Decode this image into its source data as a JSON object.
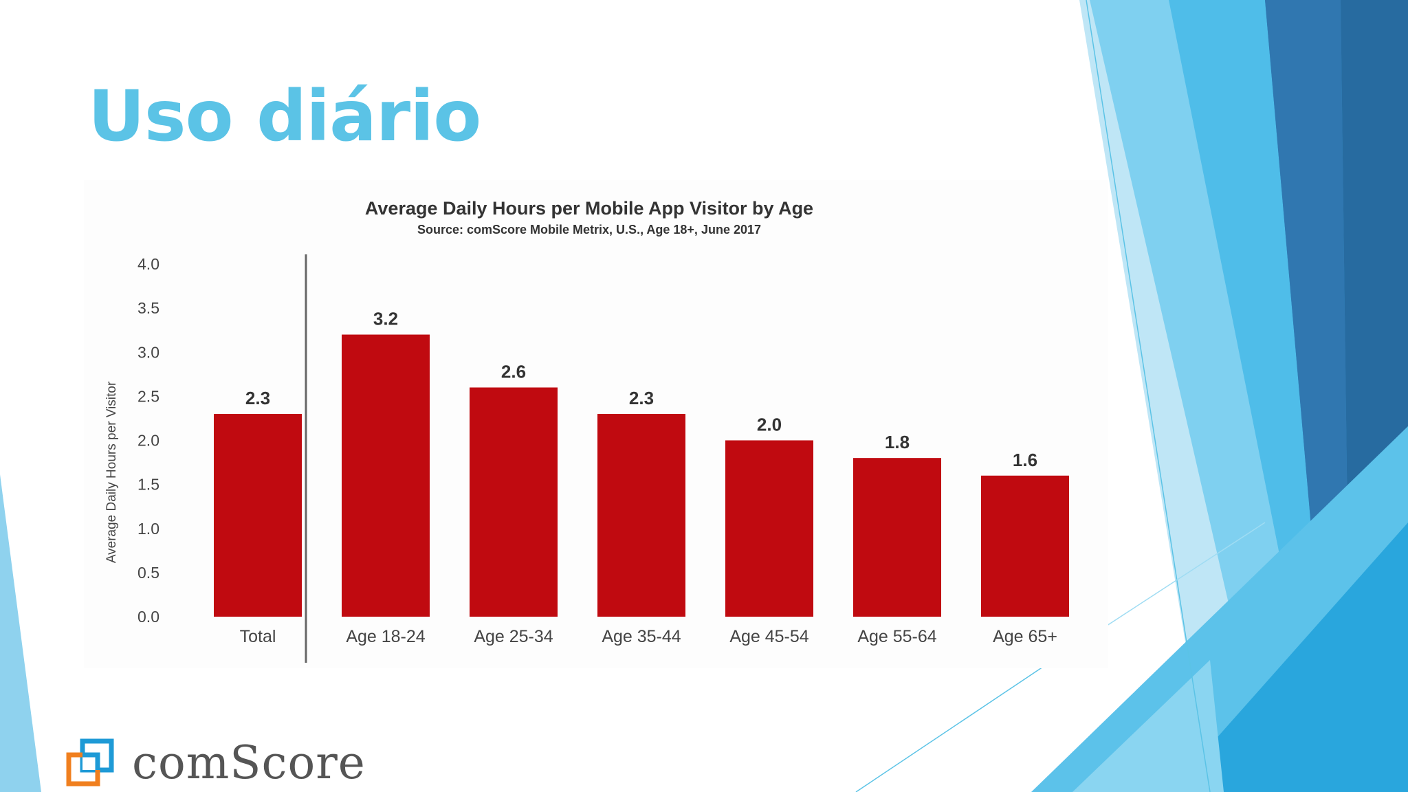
{
  "slide": {
    "title": "Uso diário",
    "logo_text": "comScore",
    "accent_color": "#5bc3e6",
    "bar_color": "#c00a10"
  },
  "chart_data": {
    "type": "bar",
    "title": "Average Daily Hours per Mobile App Visitor by Age",
    "subtitle": "Source: comScore Mobile Metrix, U.S., Age 18+, June 2017",
    "xlabel": "",
    "ylabel": "Average Daily Hours per Visitor",
    "ylim": [
      0,
      4.0
    ],
    "yticks": [
      "0.0",
      "0.5",
      "1.0",
      "1.5",
      "2.0",
      "2.5",
      "3.0",
      "3.5",
      "4.0"
    ],
    "categories": [
      "Total",
      "Age 18-24",
      "Age 25-34",
      "Age 35-44",
      "Age 45-54",
      "Age 55-64",
      "Age 65+"
    ],
    "values": [
      2.3,
      3.2,
      2.6,
      2.3,
      2.0,
      1.8,
      1.6
    ],
    "value_labels": [
      "2.3",
      "3.2",
      "2.6",
      "2.3",
      "2.0",
      "1.8",
      "1.6"
    ],
    "grid": false,
    "separator_after": "Total"
  }
}
